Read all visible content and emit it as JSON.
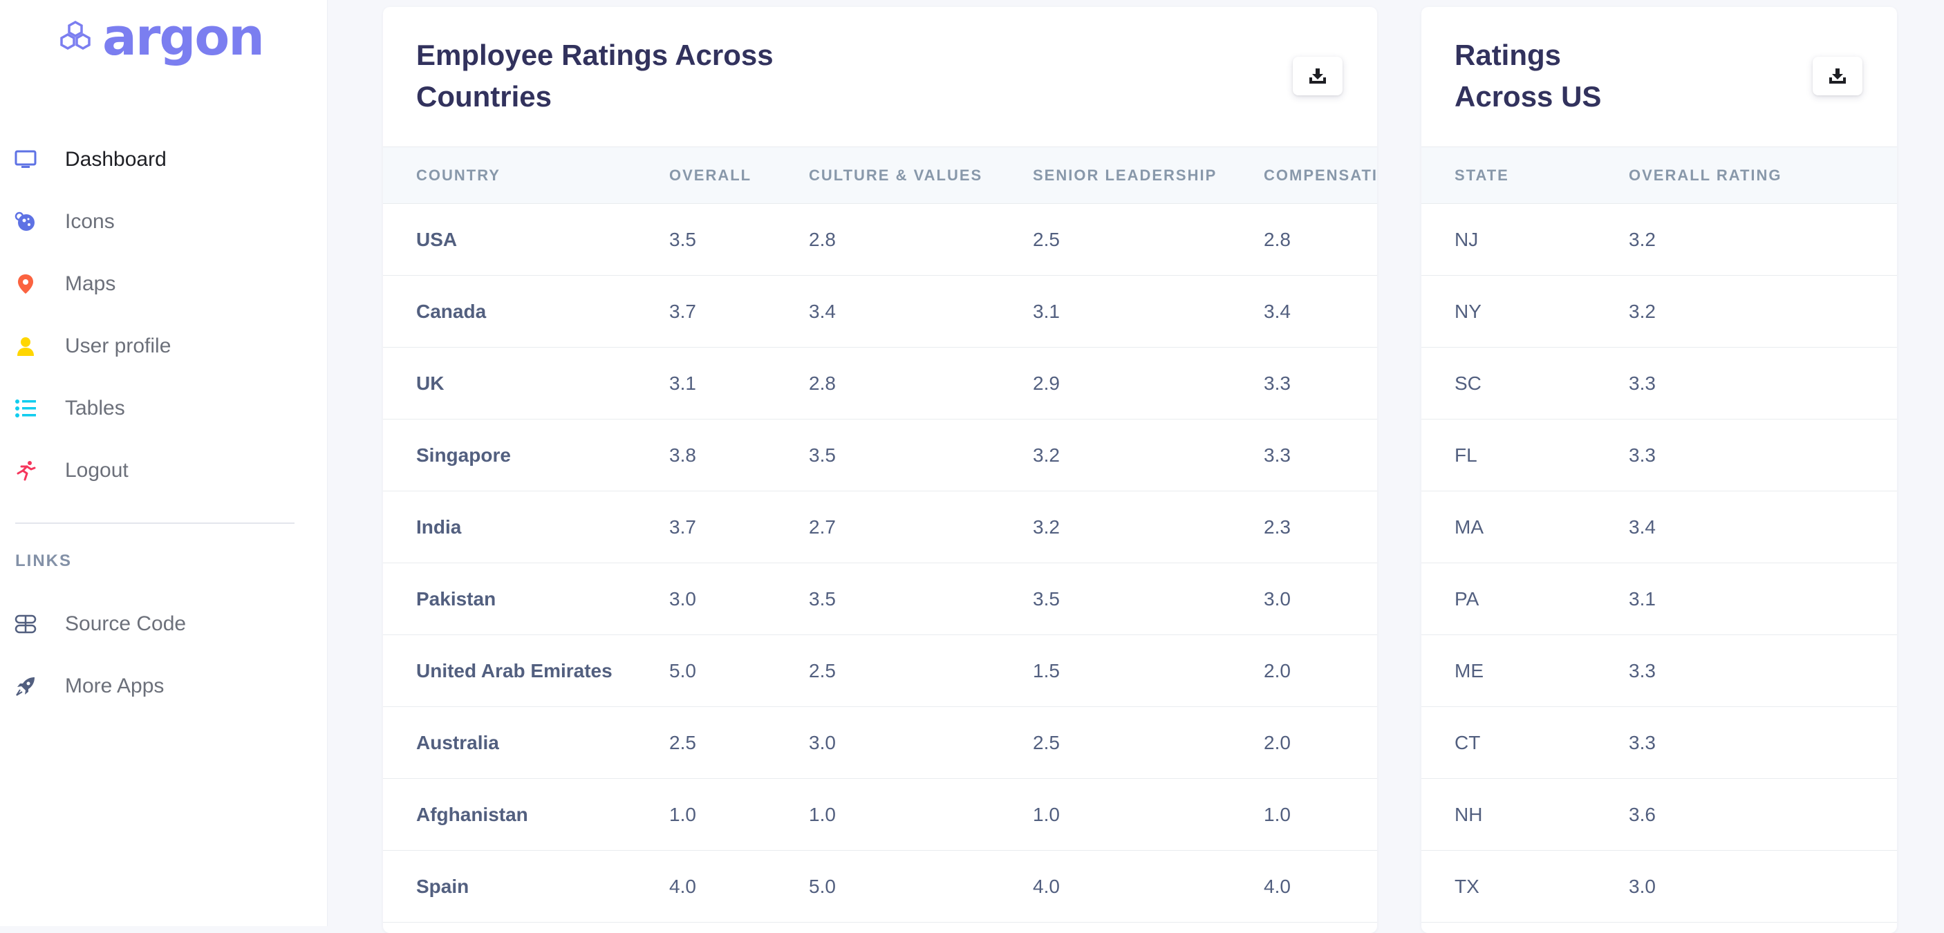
{
  "brand": {
    "name": "argon"
  },
  "nav": {
    "items": [
      {
        "label": "Dashboard",
        "icon": "tv-icon",
        "color": "#5e72e4"
      },
      {
        "label": "Icons",
        "icon": "planet-icon",
        "color": "#5e72e4"
      },
      {
        "label": "Maps",
        "icon": "pin-icon",
        "color": "#fb6340"
      },
      {
        "label": "User profile",
        "icon": "user-icon",
        "color": "#ffd600"
      },
      {
        "label": "Tables",
        "icon": "list-icon",
        "color": "#11cdef"
      },
      {
        "label": "Logout",
        "icon": "running-icon",
        "color": "#f5365c"
      }
    ],
    "links_heading": "LINKS",
    "links": [
      {
        "label": "Source Code",
        "icon": "code-icon"
      },
      {
        "label": "More Apps",
        "icon": "rocket-icon"
      }
    ]
  },
  "country_card": {
    "title_line1": "Employee Ratings Across",
    "title_line2": "Countries",
    "download_icon": "download-icon",
    "columns": [
      "COUNTRY",
      "OVERALL",
      "CULTURE & VALUES",
      "SENIOR LEADERSHIP",
      "COMPENSATION"
    ],
    "rows": [
      [
        "USA",
        "3.5",
        "2.8",
        "2.5",
        "2.8"
      ],
      [
        "Canada",
        "3.7",
        "3.4",
        "3.1",
        "3.4"
      ],
      [
        "UK",
        "3.1",
        "2.8",
        "2.9",
        "3.3"
      ],
      [
        "Singapore",
        "3.8",
        "3.5",
        "3.2",
        "3.3"
      ],
      [
        "India",
        "3.7",
        "2.7",
        "3.2",
        "2.3"
      ],
      [
        "Pakistan",
        "3.0",
        "3.5",
        "3.5",
        "3.0"
      ],
      [
        "United Arab Emirates",
        "5.0",
        "2.5",
        "1.5",
        "2.0"
      ],
      [
        "Australia",
        "2.5",
        "3.0",
        "2.5",
        "2.0"
      ],
      [
        "Afghanistan",
        "1.0",
        "1.0",
        "1.0",
        "1.0"
      ],
      [
        "Spain",
        "4.0",
        "5.0",
        "4.0",
        "4.0"
      ]
    ]
  },
  "us_card": {
    "title_line1": "Ratings",
    "title_line2": "Across US",
    "download_icon": "download-icon",
    "columns": [
      "STATE",
      "OVERALL RATING"
    ],
    "rows": [
      [
        "NJ",
        "3.2"
      ],
      [
        "NY",
        "3.2"
      ],
      [
        "SC",
        "3.3"
      ],
      [
        "FL",
        "3.3"
      ],
      [
        "MA",
        "3.4"
      ],
      [
        "PA",
        "3.1"
      ],
      [
        "ME",
        "3.3"
      ],
      [
        "CT",
        "3.3"
      ],
      [
        "NH",
        "3.6"
      ],
      [
        "TX",
        "3.0"
      ]
    ]
  }
}
